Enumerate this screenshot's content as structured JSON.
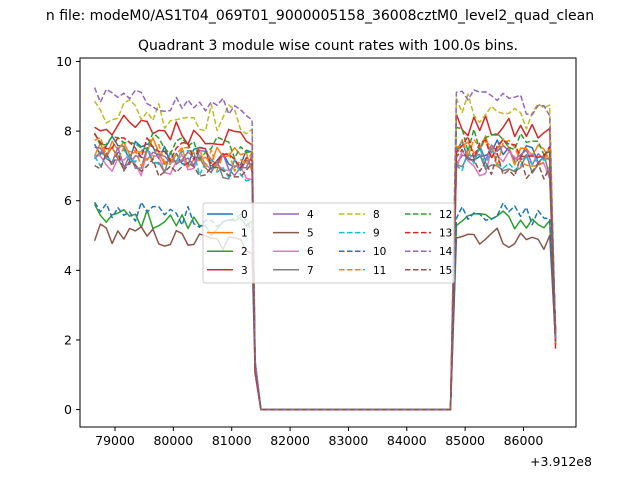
{
  "figure_title": "n file: modeM0/AS1T04_069T01_9000005158_36008cztM0_level2_quad_clean",
  "chart_data": {
    "type": "line",
    "title": "Quadrant 3 module wise count rates with 100.0s bins.",
    "xlabel": "",
    "ylabel": "",
    "x_offset_label": "+3.912e8",
    "xlim": [
      78400,
      86900
    ],
    "ylim": [
      -0.5,
      10.1
    ],
    "xticks": [
      79000,
      80000,
      81000,
      82000,
      83000,
      84000,
      85000,
      86000
    ],
    "yticks": [
      0,
      2,
      4,
      6,
      8,
      10
    ],
    "grid": false,
    "legend": {
      "placement": "center",
      "columns": 4
    },
    "segments": [
      [
        78650,
        81350
      ],
      [
        84750,
        86550
      ]
    ],
    "series": [
      {
        "name": "0",
        "color": "#1f77b4",
        "dash": "solid",
        "level": 7.5,
        "amp": 0.4
      },
      {
        "name": "1",
        "color": "#ff7f0e",
        "dash": "solid",
        "level": 7.6,
        "amp": 0.4
      },
      {
        "name": "2",
        "color": "#2ca02c",
        "dash": "solid",
        "level": 5.6,
        "amp": 0.3
      },
      {
        "name": "3",
        "color": "#d62728",
        "dash": "solid",
        "level": 8.2,
        "amp": 0.35
      },
      {
        "name": "4",
        "color": "#9467bd",
        "dash": "solid",
        "level": 7.4,
        "amp": 0.35
      },
      {
        "name": "5",
        "color": "#8c564b",
        "dash": "solid",
        "level": 5.1,
        "amp": 0.3
      },
      {
        "name": "6",
        "color": "#e377c2",
        "dash": "solid",
        "level": 7.2,
        "amp": 0.4
      },
      {
        "name": "7",
        "color": "#7f7f7f",
        "dash": "solid",
        "level": 7.3,
        "amp": 0.35
      },
      {
        "name": "8",
        "color": "#bcbd22",
        "dash": "dashed",
        "level": 8.7,
        "amp": 0.45
      },
      {
        "name": "9",
        "color": "#17becf",
        "dash": "dashed",
        "level": 7.3,
        "amp": 0.4
      },
      {
        "name": "10",
        "color": "#1f77b4",
        "dash": "dashed",
        "level": 5.8,
        "amp": 0.3
      },
      {
        "name": "11",
        "color": "#ff7f0e",
        "dash": "dashed",
        "level": 7.5,
        "amp": 0.4
      },
      {
        "name": "12",
        "color": "#2ca02c",
        "dash": "dashed",
        "level": 7.8,
        "amp": 0.35
      },
      {
        "name": "13",
        "color": "#d62728",
        "dash": "dashed",
        "level": 7.6,
        "amp": 0.35
      },
      {
        "name": "14",
        "color": "#9467bd",
        "dash": "dashed",
        "level": 9.0,
        "amp": 0.3
      },
      {
        "name": "15",
        "color": "#8c564b",
        "dash": "dashed",
        "level": 7.2,
        "amp": 0.35
      }
    ]
  }
}
